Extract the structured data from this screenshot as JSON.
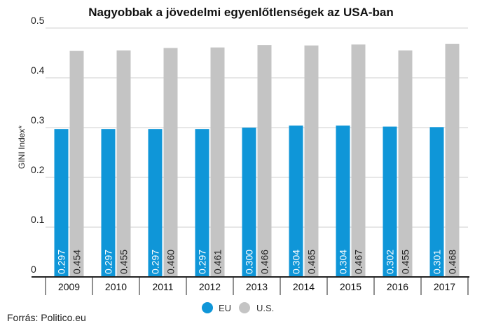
{
  "chart_data": {
    "type": "bar",
    "title": "Nagyobbak a jövedelmi egyenlőtlenségek az USA-ban",
    "ylabel": "GINI Index*",
    "xlabel": "",
    "ylim": [
      0,
      0.5
    ],
    "yticks": [
      "0",
      "0.1",
      "0.2",
      "0.3",
      "0.4",
      "0.5"
    ],
    "categories": [
      "2009",
      "2010",
      "2011",
      "2012",
      "2013",
      "2014",
      "2015",
      "2016",
      "2017"
    ],
    "series": [
      {
        "name": "EU",
        "color": "#0f96d8",
        "values": [
          0.297,
          0.297,
          0.297,
          0.297,
          0.3,
          0.304,
          0.304,
          0.302,
          0.301
        ],
        "labels": [
          "0.297",
          "0.297",
          "0.297",
          "0.297",
          "0.300",
          "0.304",
          "0.304",
          "0.302",
          "0.301"
        ]
      },
      {
        "name": "U.S.",
        "color": "#c4c4c4",
        "values": [
          0.454,
          0.455,
          0.46,
          0.461,
          0.466,
          0.465,
          0.467,
          0.455,
          0.468
        ],
        "labels": [
          "0.454",
          "0.455",
          "0.460",
          "0.461",
          "0.466",
          "0.465",
          "0.467",
          "0.455",
          "0.468"
        ]
      }
    ],
    "grid": true,
    "legend": "bottom-center"
  },
  "source": "Forrás: Politico.eu"
}
